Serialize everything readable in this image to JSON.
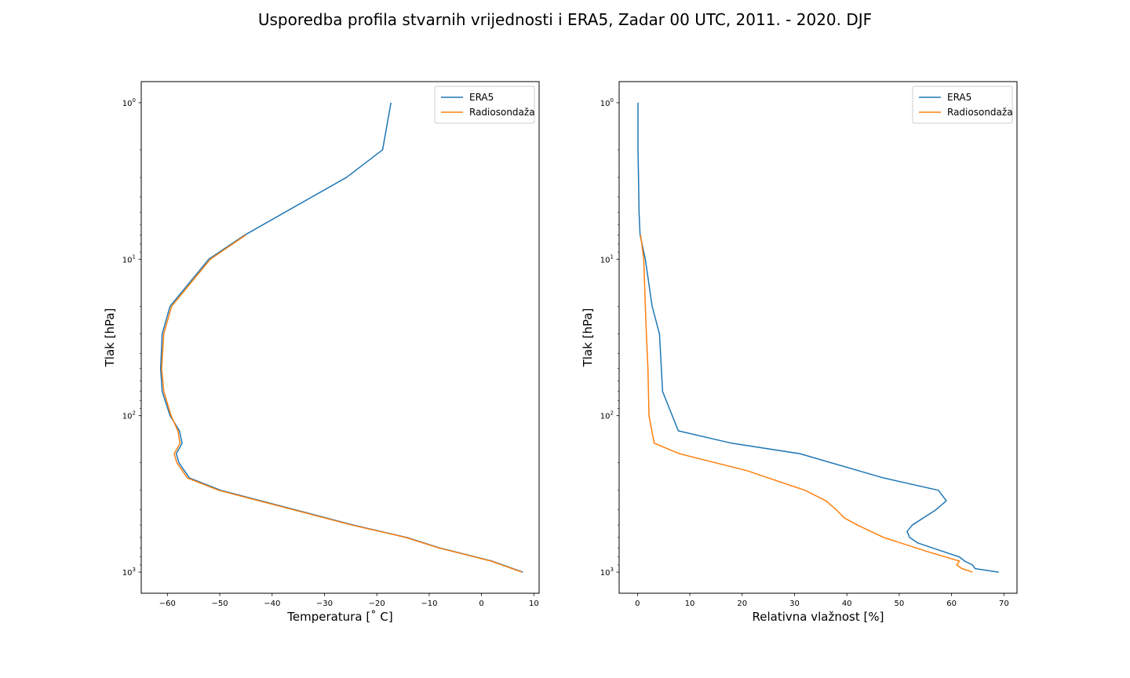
{
  "figure": {
    "title": "Usporedba profila stvarnih vrijednosti i ERA5, Zadar 00 UTC, 2011. - 2020. DJF"
  },
  "chart_data": [
    {
      "type": "line",
      "xlabel": "Temperatura [$^\\circ$ C]",
      "xlabel_display": "Temperatura [˚ C]",
      "ylabel": "Tlak [hPa]",
      "yscale": "log",
      "yinverted": true,
      "xlim": [
        -65,
        11
      ],
      "ylim": [
        1000,
        1
      ],
      "xticks": [
        -60,
        -50,
        -40,
        -30,
        -20,
        -10,
        0,
        10
      ],
      "xtick_labels": [
        "−60",
        "−50",
        "−40",
        "−30",
        "−20",
        "−10",
        "0",
        "10"
      ],
      "yticks": [
        1,
        10,
        100,
        1000
      ],
      "grid": false,
      "legend_position": "top-right",
      "series": [
        {
          "name": "ERA5",
          "color": "#1f77b4",
          "x": [
            -17.3,
            -18.9,
            -25.8,
            -45.2,
            -52.1,
            -59.5,
            -61.0,
            -61.3,
            -61.0,
            -59.5,
            -57.7,
            -57.2,
            -58.3,
            -57.8,
            -55.8,
            -49.8,
            -24.5,
            -14.3,
            -8.0,
            2.0,
            7.9
          ],
          "y": [
            1,
            2,
            3,
            7,
            10,
            20,
            30,
            50,
            70,
            100,
            125,
            150,
            175,
            200,
            250,
            300,
            500,
            600,
            700,
            850,
            1000
          ]
        },
        {
          "name": "Radiosondaža",
          "color": "#ff7f0e",
          "x": [
            -45.0,
            -51.8,
            -59.2,
            -60.7,
            -61.1,
            -60.7,
            -59.3,
            -58.0,
            -57.6,
            -58.7,
            -58.2,
            -56.2,
            -50.2,
            -24.8,
            -14.5,
            -8.2,
            1.8,
            7.7
          ],
          "y": [
            7,
            10,
            20,
            30,
            50,
            70,
            100,
            125,
            150,
            175,
            200,
            250,
            300,
            500,
            600,
            700,
            850,
            1000
          ]
        }
      ]
    },
    {
      "type": "line",
      "xlabel": "Relativna vlažnost [%]",
      "ylabel": "Tlak [hPa]",
      "yscale": "log",
      "yinverted": true,
      "xlim": [
        -3.5,
        72.5
      ],
      "ylim": [
        1000,
        1
      ],
      "xticks": [
        0,
        10,
        20,
        30,
        40,
        50,
        60,
        70
      ],
      "xtick_labels": [
        "0",
        "10",
        "20",
        "30",
        "40",
        "50",
        "60",
        "70"
      ],
      "yticks": [
        1,
        10,
        100,
        1000
      ],
      "grid": false,
      "legend_position": "top-right",
      "series": [
        {
          "name": "ERA5",
          "color": "#1f77b4",
          "x": [
            0.1,
            0.1,
            0.2,
            0.3,
            0.5,
            1.5,
            2.8,
            4.2,
            4.8,
            7.8,
            18.0,
            31.0,
            47.0,
            57.5,
            59.0,
            57.0,
            52.5,
            51.5,
            52.0,
            53.5,
            59.0,
            61.5,
            62.5,
            64.0,
            64.5,
            69.0
          ],
          "y": [
            1,
            2,
            3,
            5,
            7,
            10,
            20,
            30,
            70,
            125,
            150,
            175,
            250,
            300,
            350,
            400,
            500,
            550,
            600,
            650,
            750,
            800,
            850,
            900,
            950,
            1000
          ]
        },
        {
          "name": "Radiosondaža",
          "color": "#ff7f0e",
          "x": [
            0.6,
            1.2,
            1.5,
            1.7,
            2.0,
            2.2,
            3.2,
            8.0,
            21.0,
            25.0,
            32.0,
            36.0,
            38.0,
            39.5,
            42.0,
            47.0,
            56.0,
            61.5,
            61.0,
            61.5,
            62.0,
            64.0
          ],
          "y": [
            7,
            10,
            20,
            30,
            50,
            100,
            150,
            175,
            225,
            250,
            300,
            350,
            400,
            450,
            500,
            600,
            750,
            850,
            900,
            925,
            950,
            1000
          ]
        }
      ]
    }
  ]
}
